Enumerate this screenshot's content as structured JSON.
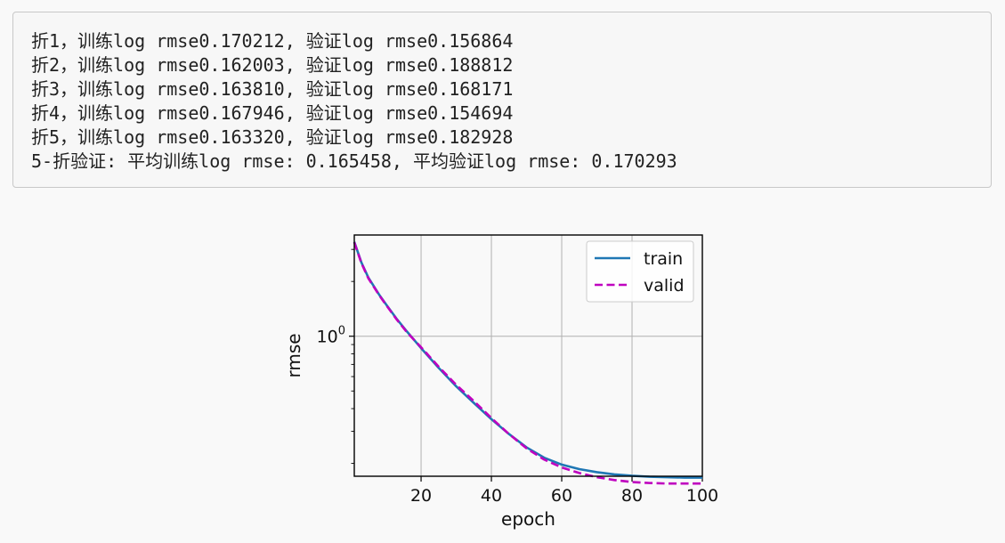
{
  "log": {
    "lines": [
      "折1，训练log rmse0.170212, 验证log rmse0.156864",
      "折2，训练log rmse0.162003, 验证log rmse0.188812",
      "折3，训练log rmse0.163810, 验证log rmse0.168171",
      "折4，训练log rmse0.167946, 验证log rmse0.154694",
      "折5，训练log rmse0.163320, 验证log rmse0.182928",
      "5-折验证: 平均训练log rmse: 0.165458, 平均验证log rmse: 0.170293"
    ]
  },
  "chart_data": {
    "type": "line",
    "xlabel": "epoch",
    "ylabel": "rmse",
    "xlim": [
      1,
      100
    ],
    "ylim": [
      0.17,
      3.6
    ],
    "yscale": "log",
    "grid": true,
    "legend_position": "top-right",
    "x_ticks": [
      20,
      40,
      60,
      80,
      100
    ],
    "x_tick_labels": [
      "20",
      "40",
      "60",
      "80",
      "100"
    ],
    "y_major_tick_base": "10",
    "y_major_tick_exp": "0",
    "series": [
      {
        "name": "train",
        "style": "solid",
        "color": "#1f77b4",
        "x": [
          1,
          3,
          5,
          8,
          10,
          13,
          16,
          20,
          25,
          30,
          35,
          40,
          45,
          50,
          55,
          60,
          65,
          70,
          75,
          80,
          85,
          90,
          95,
          100
        ],
        "y": [
          3.3,
          2.55,
          2.1,
          1.7,
          1.5,
          1.25,
          1.06,
          0.86,
          0.67,
          0.53,
          0.43,
          0.35,
          0.29,
          0.245,
          0.215,
          0.197,
          0.186,
          0.179,
          0.174,
          0.171,
          0.169,
          0.168,
          0.167,
          0.167
        ]
      },
      {
        "name": "valid",
        "style": "dashed",
        "color": "#bf00bf",
        "x": [
          1,
          3,
          5,
          8,
          10,
          13,
          16,
          20,
          25,
          30,
          35,
          40,
          45,
          50,
          55,
          60,
          65,
          70,
          75,
          80,
          85,
          90,
          95,
          100
        ],
        "y": [
          3.28,
          2.53,
          2.08,
          1.69,
          1.49,
          1.24,
          1.05,
          0.87,
          0.68,
          0.54,
          0.44,
          0.355,
          0.29,
          0.242,
          0.21,
          0.19,
          0.177,
          0.168,
          0.162,
          0.158,
          0.156,
          0.155,
          0.155,
          0.155
        ]
      }
    ]
  }
}
